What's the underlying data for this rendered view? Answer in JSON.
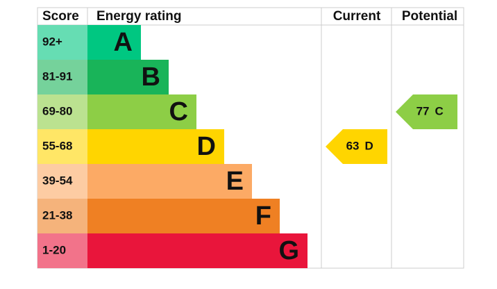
{
  "headers": {
    "score": "Score",
    "rating": "Energy rating",
    "current": "Current",
    "potential": "Potential"
  },
  "bands": [
    {
      "score": "92+",
      "letter": "A",
      "color": "#00c781",
      "light": "#66ddb3"
    },
    {
      "score": "81-91",
      "letter": "B",
      "color": "#19b459",
      "light": "#75d29b"
    },
    {
      "score": "69-80",
      "letter": "C",
      "color": "#8dce46",
      "light": "#bbe290"
    },
    {
      "score": "55-68",
      "letter": "D",
      "color": "#ffd500",
      "light": "#ffe666"
    },
    {
      "score": "39-54",
      "letter": "E",
      "color": "#fcaa65",
      "light": "#fdcca3"
    },
    {
      "score": "21-38",
      "letter": "F",
      "color": "#ef8023",
      "light": "#f5b37b"
    },
    {
      "score": "1-20",
      "letter": "G",
      "color": "#e9153b",
      "light": "#f2738a"
    }
  ],
  "current": {
    "score": 63,
    "letter": "D"
  },
  "potential": {
    "score": 77,
    "letter": "C"
  }
}
